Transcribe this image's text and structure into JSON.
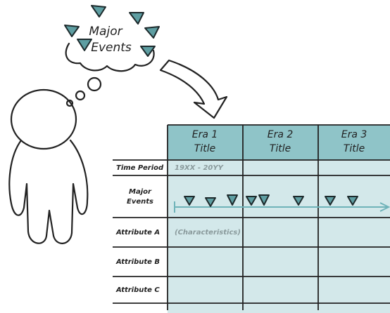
{
  "thought": {
    "lines": [
      "Major",
      "Events"
    ]
  },
  "table": {
    "columns": [
      [
        "Era 1",
        "Title"
      ],
      [
        "Era 2",
        "Title"
      ],
      [
        "Era 3",
        "Title"
      ]
    ],
    "rows": [
      {
        "label": [
          "Time Period"
        ],
        "note": "19XX - 20YY"
      },
      {
        "label": [
          "Major",
          "Events"
        ]
      },
      {
        "label": [
          "Attribute A"
        ],
        "note": "(Characteristics)"
      },
      {
        "label": [
          "Attribute B"
        ]
      },
      {
        "label": [
          "Attribute C"
        ]
      }
    ]
  }
}
